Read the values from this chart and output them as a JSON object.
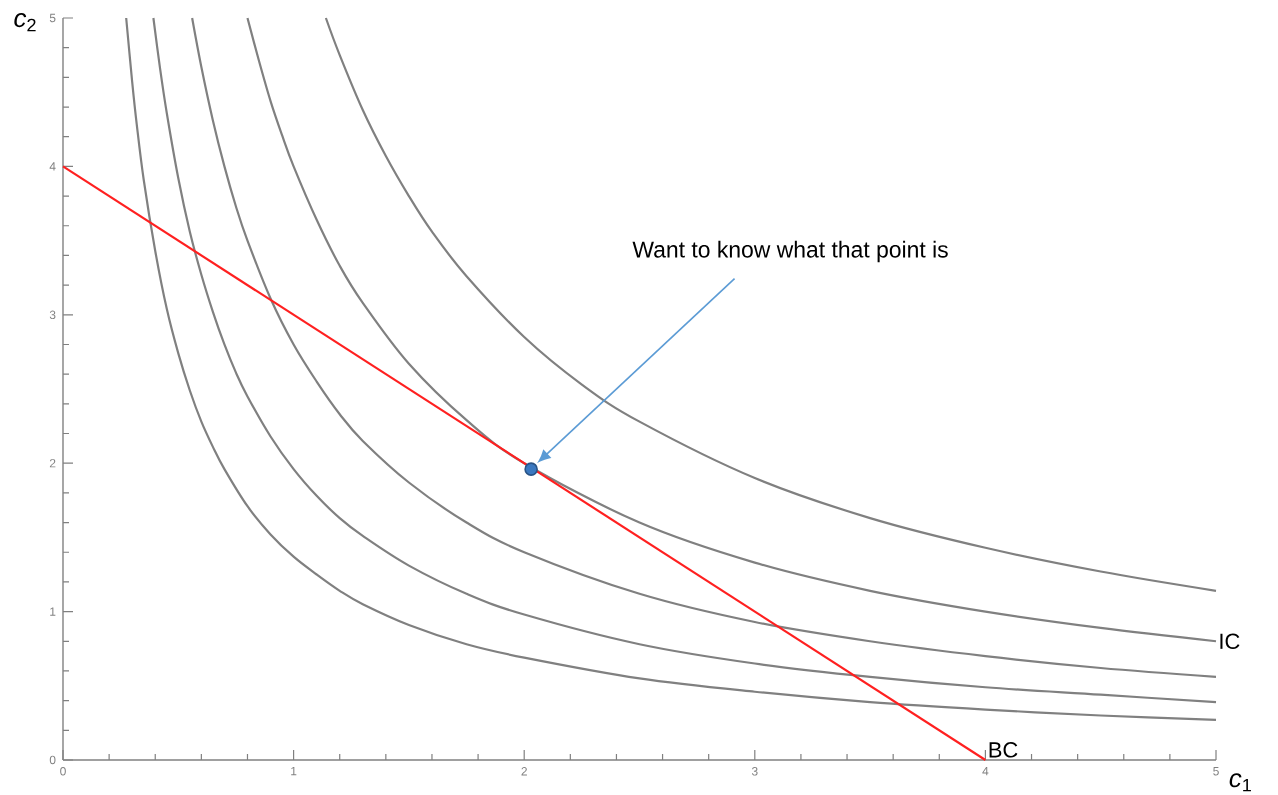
{
  "chart_data": {
    "type": "line",
    "xlabel": "*c*$_{1}$",
    "ylabel": "*c*$_{2}$",
    "xlim": [
      0,
      5
    ],
    "ylim": [
      0,
      5
    ],
    "xticks": [
      0,
      1,
      2,
      3,
      4,
      5
    ],
    "yticks": [
      0,
      1,
      2,
      3,
      4,
      5
    ],
    "grid": false,
    "marker": "none",
    "annotations": [
      "Want to know what that point is"
    ],
    "series": [
      {
        "color": "#808080",
        "x": [
          0.274,
          0.3,
          0.32,
          0.35,
          0.4,
          0.45,
          0.5,
          0.55,
          0.6,
          0.65,
          0.7,
          0.8,
          0.9,
          1,
          1.1,
          1.2,
          1.3,
          1.5,
          1.75,
          2,
          2.5,
          3,
          3.5,
          4,
          4.5,
          5
        ],
        "values": [
          5,
          4.57,
          4.28,
          3.91,
          3.43,
          3.04,
          2.74,
          2.49,
          2.28,
          2.11,
          1.96,
          1.71,
          1.52,
          1.37,
          1.25,
          1.14,
          1.05,
          0.91,
          0.78,
          0.69,
          0.55,
          0.46,
          0.39,
          0.34,
          0.3,
          0.27
        ]
      },
      {
        "color": "#808080",
        "x": [
          0.392,
          0.42,
          0.45,
          0.5,
          0.55,
          0.6,
          0.65,
          0.7,
          0.75,
          0.8,
          0.9,
          1,
          1.1,
          1.2,
          1.3,
          1.5,
          1.75,
          2,
          2.5,
          3,
          3.5,
          4,
          4.5,
          5
        ],
        "values": [
          5,
          4.67,
          4.36,
          3.92,
          3.56,
          3.27,
          3.02,
          2.8,
          2.61,
          2.45,
          2.18,
          1.96,
          1.78,
          1.63,
          1.51,
          1.31,
          1.12,
          0.98,
          0.78,
          0.65,
          0.56,
          0.49,
          0.44,
          0.39
        ]
      },
      {
        "color": "#808080",
        "x": [
          0.56,
          0.6,
          0.65,
          0.7,
          0.75,
          0.8,
          0.9,
          1,
          1.1,
          1.2,
          1.3,
          1.5,
          1.75,
          2,
          2.5,
          3,
          3.5,
          4,
          4.5,
          5
        ],
        "values": [
          5,
          4.67,
          4.31,
          4,
          3.73,
          3.5,
          3.11,
          2.8,
          2.55,
          2.33,
          2.15,
          1.87,
          1.6,
          1.4,
          1.12,
          0.93,
          0.8,
          0.7,
          0.62,
          0.56
        ]
      },
      {
        "name": "IC",
        "color": "#808080",
        "x": [
          0.8,
          0.85,
          0.9,
          0.95,
          1,
          1.1,
          1.2,
          1.3,
          1.5,
          1.75,
          2,
          2.5,
          3,
          3.5,
          4,
          4.5,
          5
        ],
        "values": [
          5,
          4.71,
          4.44,
          4.21,
          4,
          3.64,
          3.33,
          3.08,
          2.67,
          2.29,
          2,
          1.6,
          1.33,
          1.14,
          1,
          0.89,
          0.8
        ]
      },
      {
        "color": "#808080",
        "x": [
          1.14,
          1.2,
          1.3,
          1.4,
          1.5,
          1.6,
          1.75,
          2,
          2.25,
          2.5,
          3,
          3.5,
          4,
          4.5,
          5
        ],
        "values": [
          5,
          4.75,
          4.38,
          4.07,
          3.8,
          3.56,
          3.26,
          2.85,
          2.53,
          2.28,
          1.9,
          1.63,
          1.43,
          1.27,
          1.14
        ]
      },
      {
        "name": "BC",
        "color": "#ff2020",
        "x": [
          0,
          4
        ],
        "values": [
          4,
          0
        ]
      },
      {
        "type": "scatter",
        "marker": "circle",
        "color": "#3a78c0",
        "x": [
          2.03
        ],
        "values": [
          1.96
        ]
      }
    ]
  }
}
